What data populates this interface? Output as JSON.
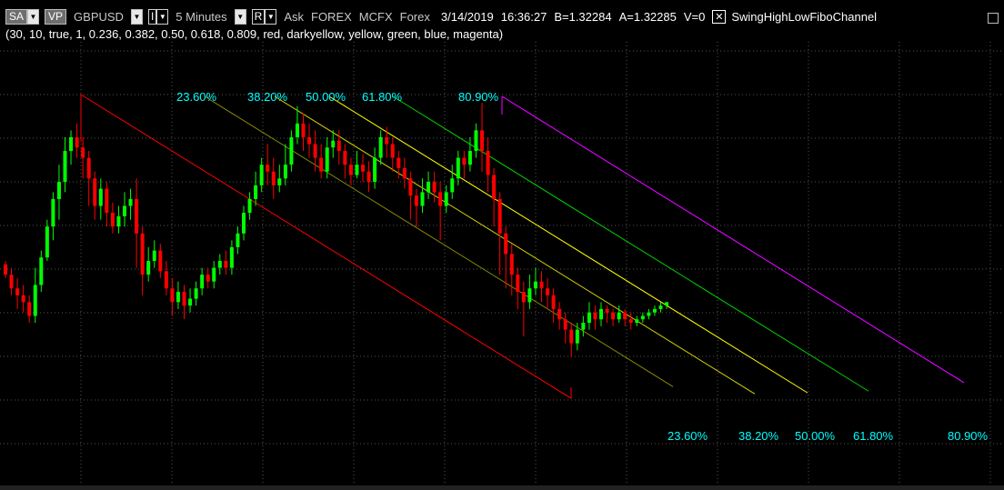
{
  "header": {
    "sa_label": "SA",
    "vp_label": "VP",
    "symbol": "GBPUSD",
    "i_label": "I",
    "interval": "5 Minutes",
    "r_label": "R",
    "side": "Ask",
    "venue": "FOREX",
    "feed": "MCFX",
    "asset_class": "Forex",
    "date": "3/14/2019",
    "time": "16:36:27",
    "bid": "B=1.32284",
    "ask": "A=1.32285",
    "volume": "V=0",
    "study_name": "SwingHighLowFiboChannel",
    "params": "(30,  10,  true,  1,  0.236,  0.382,  0.50,  0.618,  0.809,  red,  darkyellow,  yellow,  green,  blue,  magenta)"
  },
  "chart_data": {
    "type": "candlestick",
    "symbol": "GBPUSD",
    "interval": "5 Minutes",
    "grid": true,
    "fibo_levels": [
      {
        "label": "23.60%",
        "ratio": 0.236,
        "color": "#8a8a00"
      },
      {
        "label": "38.20%",
        "ratio": 0.382,
        "color": "#d4d400"
      },
      {
        "label": "50.00%",
        "ratio": 0.5,
        "color": "#ffff00"
      },
      {
        "label": "61.80%",
        "ratio": 0.618,
        "color": "#00d000"
      },
      {
        "label": "80.90%",
        "ratio": 0.809,
        "color": "#0000ff"
      }
    ],
    "base_line_color": "#ff0000",
    "top_line_color": "#ff00ff",
    "label_color": "#00ffff",
    "up_color": "#00ff00",
    "down_color": "#ff0000",
    "candles": [
      [
        0.49,
        0.46,
        0.45,
        0.5
      ],
      [
        0.46,
        0.42,
        0.4,
        0.48
      ],
      [
        0.42,
        0.4,
        0.36,
        0.45
      ],
      [
        0.4,
        0.38,
        0.35,
        0.43
      ],
      [
        0.38,
        0.34,
        0.32,
        0.4
      ],
      [
        0.34,
        0.43,
        0.32,
        0.48
      ],
      [
        0.43,
        0.51,
        0.41,
        0.53
      ],
      [
        0.51,
        0.6,
        0.5,
        0.62
      ],
      [
        0.6,
        0.68,
        0.56,
        0.7
      ],
      [
        0.68,
        0.73,
        0.62,
        0.78
      ],
      [
        0.73,
        0.82,
        0.7,
        0.86
      ],
      [
        0.82,
        0.86,
        0.78,
        0.88
      ],
      [
        0.86,
        0.83,
        0.8,
        0.9
      ],
      [
        0.83,
        0.8,
        0.74,
        0.86
      ],
      [
        0.8,
        0.74,
        0.66,
        0.82
      ],
      [
        0.74,
        0.66,
        0.62,
        0.76
      ],
      [
        0.66,
        0.71,
        0.62,
        0.74
      ],
      [
        0.71,
        0.64,
        0.6,
        0.73
      ],
      [
        0.64,
        0.6,
        0.58,
        0.67
      ],
      [
        0.6,
        0.63,
        0.58,
        0.66
      ],
      [
        0.63,
        0.66,
        0.6,
        0.7
      ],
      [
        0.66,
        0.68,
        0.62,
        0.71
      ],
      [
        0.68,
        0.58,
        0.48,
        0.74
      ],
      [
        0.58,
        0.46,
        0.4,
        0.6
      ],
      [
        0.46,
        0.5,
        0.44,
        0.54
      ],
      [
        0.5,
        0.53,
        0.48,
        0.56
      ],
      [
        0.53,
        0.47,
        0.45,
        0.55
      ],
      [
        0.47,
        0.42,
        0.4,
        0.5
      ],
      [
        0.42,
        0.38,
        0.34,
        0.45
      ],
      [
        0.38,
        0.41,
        0.36,
        0.44
      ],
      [
        0.41,
        0.37,
        0.33,
        0.43
      ],
      [
        0.37,
        0.39,
        0.35,
        0.42
      ],
      [
        0.39,
        0.42,
        0.37,
        0.44
      ],
      [
        0.42,
        0.46,
        0.4,
        0.48
      ],
      [
        0.46,
        0.44,
        0.42,
        0.48
      ],
      [
        0.44,
        0.48,
        0.42,
        0.5
      ],
      [
        0.48,
        0.5,
        0.46,
        0.52
      ],
      [
        0.5,
        0.48,
        0.46,
        0.53
      ],
      [
        0.48,
        0.54,
        0.46,
        0.56
      ],
      [
        0.54,
        0.58,
        0.52,
        0.6
      ],
      [
        0.58,
        0.64,
        0.56,
        0.66
      ],
      [
        0.64,
        0.68,
        0.62,
        0.7
      ],
      [
        0.68,
        0.72,
        0.66,
        0.76
      ],
      [
        0.72,
        0.78,
        0.7,
        0.8
      ],
      [
        0.78,
        0.76,
        0.72,
        0.84
      ],
      [
        0.76,
        0.72,
        0.68,
        0.8
      ],
      [
        0.72,
        0.74,
        0.7,
        0.78
      ],
      [
        0.74,
        0.78,
        0.72,
        0.84
      ],
      [
        0.78,
        0.86,
        0.76,
        0.88
      ],
      [
        0.86,
        0.9,
        0.84,
        0.95
      ],
      [
        0.9,
        0.86,
        0.82,
        0.93
      ],
      [
        0.86,
        0.84,
        0.8,
        0.9
      ],
      [
        0.84,
        0.8,
        0.76,
        0.88
      ],
      [
        0.8,
        0.76,
        0.74,
        0.84
      ],
      [
        0.76,
        0.83,
        0.74,
        0.86
      ],
      [
        0.83,
        0.85,
        0.8,
        0.88
      ],
      [
        0.85,
        0.82,
        0.78,
        0.88
      ],
      [
        0.82,
        0.78,
        0.74,
        0.84
      ],
      [
        0.78,
        0.75,
        0.72,
        0.8
      ],
      [
        0.75,
        0.78,
        0.74,
        0.82
      ],
      [
        0.78,
        0.76,
        0.73,
        0.81
      ],
      [
        0.76,
        0.73,
        0.7,
        0.79
      ],
      [
        0.73,
        0.8,
        0.71,
        0.83
      ],
      [
        0.8,
        0.86,
        0.78,
        0.88
      ],
      [
        0.86,
        0.84,
        0.8,
        0.89
      ],
      [
        0.84,
        0.8,
        0.76,
        0.86
      ],
      [
        0.8,
        0.77,
        0.74,
        0.82
      ],
      [
        0.77,
        0.74,
        0.71,
        0.8
      ],
      [
        0.74,
        0.69,
        0.62,
        0.76
      ],
      [
        0.69,
        0.66,
        0.6,
        0.71
      ],
      [
        0.66,
        0.7,
        0.64,
        0.74
      ],
      [
        0.7,
        0.73,
        0.68,
        0.76
      ],
      [
        0.73,
        0.7,
        0.67,
        0.76
      ],
      [
        0.7,
        0.66,
        0.56,
        0.73
      ],
      [
        0.66,
        0.7,
        0.64,
        0.72
      ],
      [
        0.7,
        0.74,
        0.68,
        0.78
      ],
      [
        0.74,
        0.8,
        0.72,
        0.82
      ],
      [
        0.8,
        0.78,
        0.74,
        0.82
      ],
      [
        0.78,
        0.82,
        0.76,
        0.86
      ],
      [
        0.82,
        0.88,
        0.8,
        0.9
      ],
      [
        0.88,
        0.82,
        0.76,
        0.96
      ],
      [
        0.82,
        0.75,
        0.7,
        0.86
      ],
      [
        0.75,
        0.68,
        0.6,
        0.77
      ],
      [
        0.68,
        0.58,
        0.46,
        0.7
      ],
      [
        0.58,
        0.52,
        0.42,
        0.6
      ],
      [
        0.52,
        0.46,
        0.4,
        0.55
      ],
      [
        0.46,
        0.41,
        0.36,
        0.48
      ],
      [
        0.41,
        0.38,
        0.28,
        0.44
      ],
      [
        0.38,
        0.42,
        0.36,
        0.46
      ],
      [
        0.42,
        0.44,
        0.4,
        0.48
      ],
      [
        0.44,
        0.42,
        0.38,
        0.47
      ],
      [
        0.42,
        0.4,
        0.36,
        0.45
      ],
      [
        0.4,
        0.36,
        0.32,
        0.42
      ],
      [
        0.36,
        0.33,
        0.3,
        0.38
      ],
      [
        0.33,
        0.3,
        0.26,
        0.35
      ],
      [
        0.3,
        0.26,
        0.22,
        0.32
      ],
      [
        0.26,
        0.3,
        0.24,
        0.32
      ],
      [
        0.3,
        0.32,
        0.28,
        0.34
      ],
      [
        0.32,
        0.35,
        0.3,
        0.38
      ],
      [
        0.35,
        0.33,
        0.3,
        0.37
      ],
      [
        0.33,
        0.36,
        0.31,
        0.38
      ],
      [
        0.36,
        0.35,
        0.32,
        0.37
      ],
      [
        0.35,
        0.33,
        0.31,
        0.36
      ],
      [
        0.33,
        0.35,
        0.32,
        0.37
      ],
      [
        0.35,
        0.33,
        0.31,
        0.36
      ],
      [
        0.33,
        0.32,
        0.3,
        0.35
      ],
      [
        0.32,
        0.33,
        0.31,
        0.34
      ],
      [
        0.33,
        0.34,
        0.32,
        0.35
      ],
      [
        0.34,
        0.35,
        0.33,
        0.36
      ],
      [
        0.35,
        0.36,
        0.34,
        0.37
      ],
      [
        0.36,
        0.37,
        0.35,
        0.38
      ],
      [
        0.37,
        0.38,
        0.36,
        0.38
      ]
    ]
  }
}
